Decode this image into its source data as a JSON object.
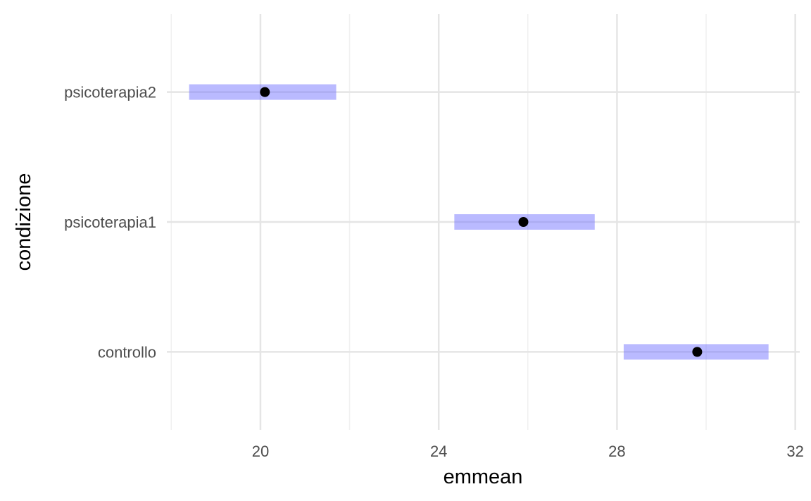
{
  "chart_data": {
    "type": "errorbar",
    "xlabel": "emmean",
    "ylabel": "condizione",
    "xlim": [
      17.9,
      32.1
    ],
    "x_ticks": [
      20,
      24,
      28,
      32
    ],
    "x_minor_ticks": [
      18,
      22,
      26,
      30
    ],
    "grid": true,
    "categories": [
      "controllo",
      "psicoterapia1",
      "psicoterapia2"
    ],
    "series": [
      {
        "points": [
          {
            "category": "controllo",
            "emmean": 29.8,
            "lower": 28.15,
            "upper": 31.4
          },
          {
            "category": "psicoterapia1",
            "emmean": 25.9,
            "lower": 24.35,
            "upper": 27.5
          },
          {
            "category": "psicoterapia2",
            "emmean": 20.1,
            "lower": 18.4,
            "upper": 21.7
          }
        ]
      }
    ],
    "colors": {
      "interval": "#6666ff",
      "point": "#000000",
      "grid_major": "#e5e5e5",
      "grid_minor": "#f0f0f0"
    }
  }
}
